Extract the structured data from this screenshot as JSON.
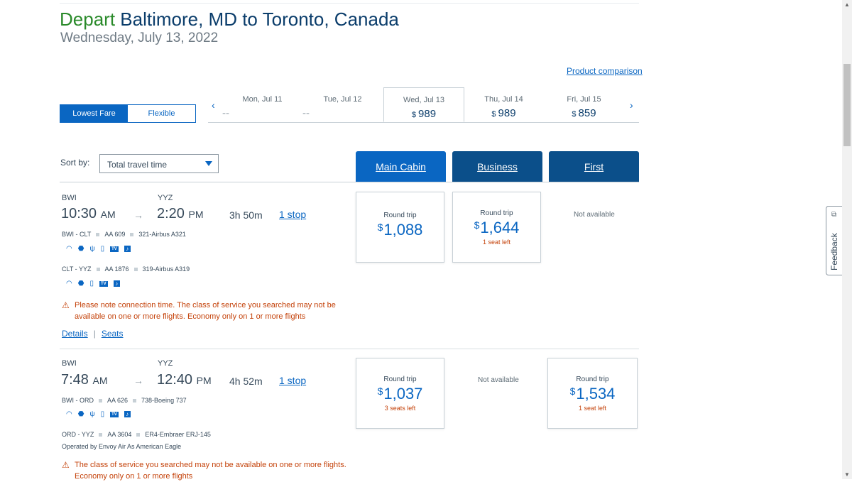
{
  "header": {
    "depart_word": "Depart",
    "route": "Baltimore, MD to Toronto, Canada",
    "date": "Wednesday, July 13, 2022",
    "product_comparison": "Product comparison"
  },
  "fare_toggle": {
    "lowest": "Lowest Fare",
    "flexible": "Flexible"
  },
  "date_bar": {
    "prev_icon": "chevron-left-icon",
    "next_icon": "chevron-right-icon",
    "days": [
      {
        "label": "Mon, Jul 11",
        "price": "--"
      },
      {
        "label": "Tue, Jul 12",
        "price": "--"
      },
      {
        "label": "Wed, Jul 13",
        "currency": "$",
        "price": "989",
        "selected": true
      },
      {
        "label": "Thu, Jul 14",
        "currency": "$",
        "price": "989"
      },
      {
        "label": "Fri, Jul 15",
        "currency": "$",
        "price": "859"
      }
    ]
  },
  "sort": {
    "label": "Sort by:",
    "value": "Total travel time"
  },
  "cabins": [
    "Main Cabin",
    "Business",
    "First"
  ],
  "flights": [
    {
      "from": "BWI",
      "to": "YYZ",
      "dep_time": "10:30",
      "dep_ampm": "AM",
      "arr_time": "2:20",
      "arr_ampm": "PM",
      "duration": "3h  50m",
      "stops": "1 stop",
      "segments": [
        {
          "route": "BWI - CLT",
          "flight": "AA 609",
          "aircraft": "321-Airbus A321"
        },
        {
          "route": "CLT - YYZ",
          "flight": "AA 1876",
          "aircraft": "319-Airbus A319"
        }
      ],
      "warning_line1": "Please note connection time. The class of service you searched may not be",
      "warning_line2": "available on one or more flights. Economy only on 1 or more flights",
      "details": "Details",
      "seats": "Seats",
      "separator": "|",
      "fares": {
        "main": {
          "type": "Round trip",
          "currency": "$",
          "price": "1,088",
          "seats": ""
        },
        "business": {
          "type": "Round trip",
          "currency": "$",
          "price": "1,644",
          "seats": "1 seat left"
        },
        "first": {
          "not_available": "Not available"
        }
      }
    },
    {
      "from": "BWI",
      "to": "YYZ",
      "dep_time": "7:48",
      "dep_ampm": "AM",
      "arr_time": "12:40",
      "arr_ampm": "PM",
      "duration": "4h  52m",
      "stops": "1 stop",
      "segments": [
        {
          "route": "BWI - ORD",
          "flight": "AA 626",
          "aircraft": "738-Boeing 737"
        },
        {
          "route": "ORD - YYZ",
          "flight": "AA 3604",
          "aircraft": "ER4-Embraer ERJ-145"
        }
      ],
      "operated_by": "Operated by Envoy Air As American Eagle",
      "warning_line1": "The class of service you searched may not be available on one or more flights.",
      "warning_line2": "Economy only on 1 or more flights",
      "fares": {
        "main": {
          "type": "Round trip",
          "currency": "$",
          "price": "1,037",
          "seats": "3 seats left"
        },
        "business": {
          "not_available": "Not available"
        },
        "first": {
          "type": "Round trip",
          "currency": "$",
          "price": "1,534",
          "seats": "1 seat left"
        }
      }
    }
  ],
  "feedback": "Feedback",
  "colors": {
    "accent": "#0a66c2",
    "depart_green": "#2a8a2a",
    "warning": "#c4420a",
    "navy": "#0b4f8a"
  }
}
